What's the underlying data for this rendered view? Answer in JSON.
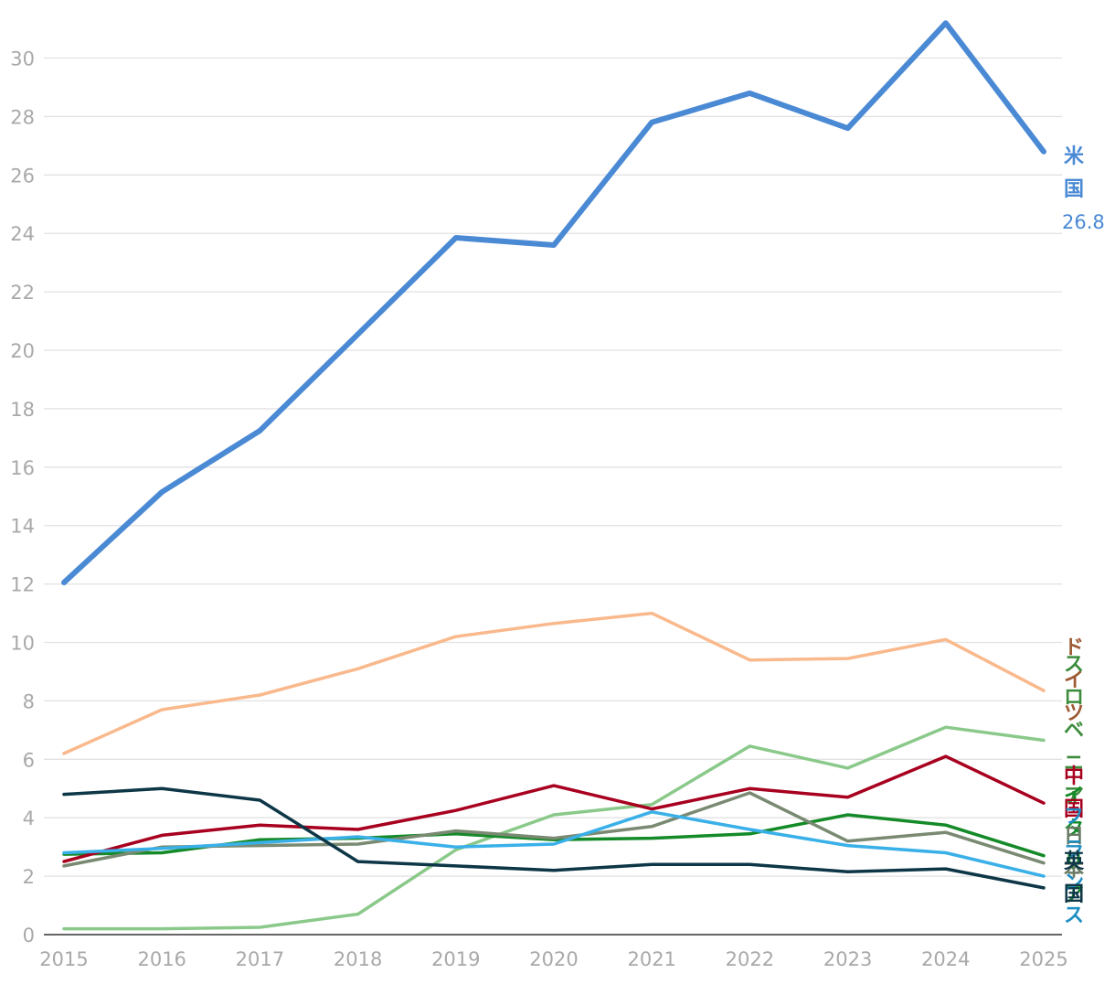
{
  "chart_data": {
    "type": "line",
    "x": [
      2015,
      2016,
      2017,
      2018,
      2019,
      2020,
      2021,
      2022,
      2023,
      2024,
      2025
    ],
    "y_ticks": [
      0,
      2,
      4,
      6,
      8,
      10,
      12,
      14,
      16,
      18,
      20,
      22,
      24,
      26,
      28,
      30
    ],
    "ylim": [
      0,
      31.3
    ],
    "xlim": [
      2015,
      2025
    ],
    "grid": true,
    "series": [
      {
        "name": "米国",
        "color": "#4a89d4",
        "emphasis": true,
        "end_value_label": "26.8",
        "values": [
          12.05,
          15.15,
          17.25,
          20.55,
          23.85,
          23.6,
          27.8,
          28.8,
          27.6,
          31.2,
          26.8
        ]
      },
      {
        "name": "ドイツ",
        "color": "#f9b98c",
        "label_color": "#9d5a34",
        "values": [
          6.2,
          7.7,
          8.2,
          9.1,
          10.2,
          10.65,
          11.0,
          9.4,
          9.45,
          10.1,
          8.35
        ]
      },
      {
        "name": "スロベニア",
        "color": "#8ac98a",
        "label_color": "#3c8c3c",
        "values": [
          0.2,
          0.2,
          0.25,
          0.7,
          2.9,
          4.1,
          4.45,
          6.45,
          5.7,
          7.1,
          6.65
        ]
      },
      {
        "name": "イタリア",
        "color": "#148a28",
        "label_color": "#148a28",
        "values": [
          2.75,
          2.8,
          3.25,
          3.3,
          3.45,
          3.25,
          3.3,
          3.45,
          4.1,
          3.75,
          2.7
        ]
      },
      {
        "name": "中国",
        "color": "#a8001f",
        "label_color": "#a8001f",
        "values": [
          2.5,
          3.4,
          3.75,
          3.6,
          4.25,
          5.1,
          4.3,
          5.0,
          4.7,
          6.1,
          4.5
        ]
      },
      {
        "name": "日本",
        "color": "#7a8a72",
        "label_color": "#6a7a64",
        "values": [
          2.35,
          3.0,
          3.05,
          3.1,
          3.55,
          3.3,
          3.7,
          4.85,
          3.2,
          3.5,
          2.45
        ]
      },
      {
        "name": "フランス",
        "color": "#3ab0e8",
        "label_color": "#1f8fc4",
        "values": [
          2.8,
          2.95,
          3.15,
          3.35,
          3.0,
          3.1,
          4.2,
          3.6,
          3.05,
          2.8,
          2.0
        ]
      },
      {
        "name": "英国",
        "color": "#0d3646",
        "label_color": "#0d3646",
        "values": [
          4.8,
          5.0,
          4.6,
          2.5,
          2.35,
          2.2,
          2.4,
          2.4,
          2.15,
          2.25,
          1.6
        ]
      }
    ]
  }
}
